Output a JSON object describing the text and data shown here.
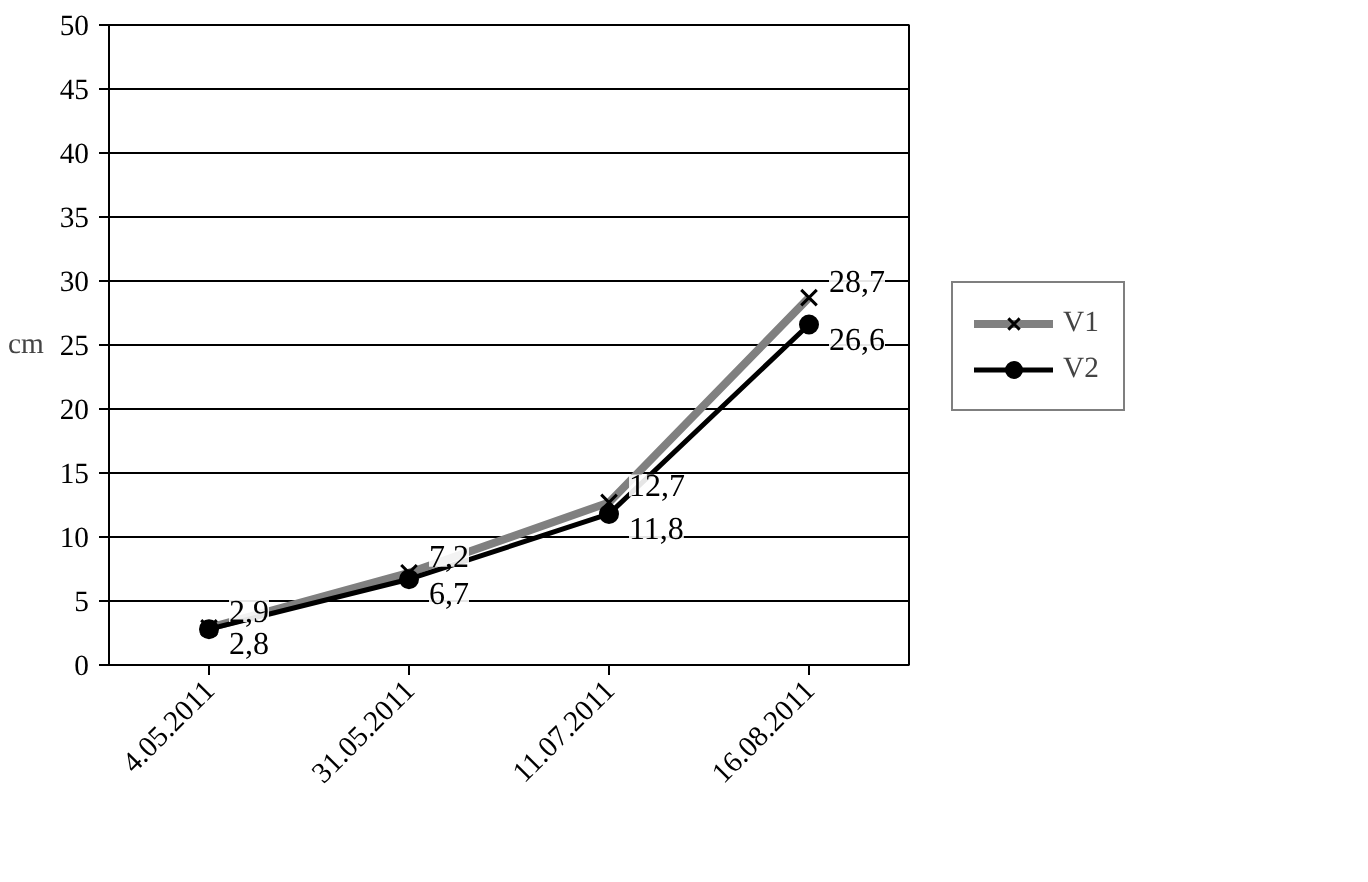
{
  "chart_data": {
    "type": "line",
    "ylabel": "cm",
    "categories": [
      "4.05.2011",
      "31.05.2011",
      "11.07.2011",
      "16.08.2011"
    ],
    "ylim": [
      0,
      50
    ],
    "yticks": [
      0,
      5,
      10,
      15,
      20,
      25,
      30,
      35,
      40,
      45,
      50
    ],
    "grid": "y",
    "legend": "right",
    "series": [
      {
        "name": "V1",
        "color": "#808080",
        "values": [
          2.9,
          7.2,
          12.7,
          28.7
        ],
        "value_labels": [
          "2,9",
          "7,2",
          "12,7",
          "28,7"
        ],
        "marker": "cross"
      },
      {
        "name": "V2",
        "color": "#000000",
        "values": [
          2.8,
          6.7,
          11.8,
          26.6
        ],
        "value_labels": [
          "2,8",
          "6,7",
          "11,8",
          "26,6"
        ],
        "marker": "circle"
      }
    ]
  }
}
